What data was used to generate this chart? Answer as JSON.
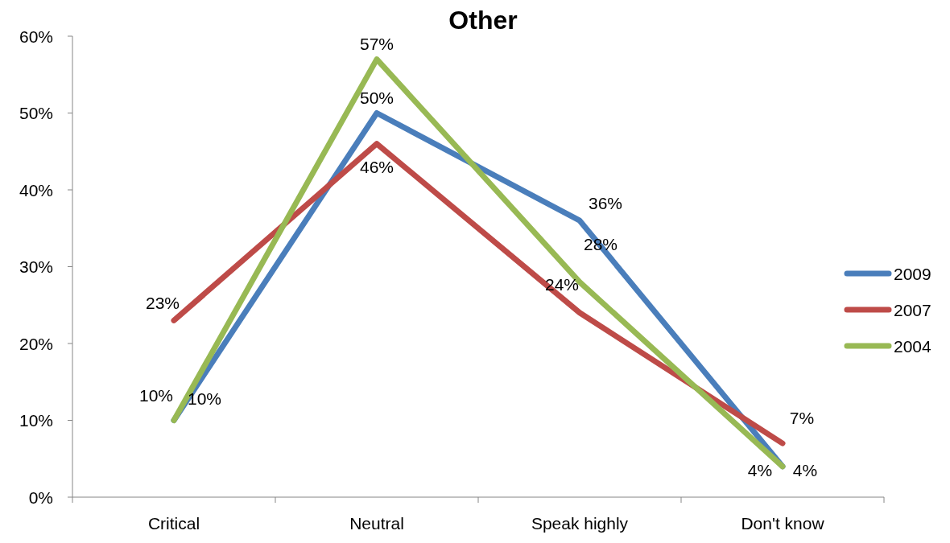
{
  "chart_data": {
    "type": "line",
    "title": "Other",
    "categories": [
      "Critical",
      "Neutral",
      "Speak highly",
      "Don't know"
    ],
    "series": [
      {
        "name": "2009",
        "color": "#4a7ebb",
        "values": [
          10,
          50,
          36,
          4
        ],
        "value_labels": [
          "10%",
          "50%",
          "36%",
          "4%"
        ]
      },
      {
        "name": "2007",
        "color": "#be4b48",
        "values": [
          23,
          46,
          24,
          7
        ],
        "value_labels": [
          "23%",
          "46%",
          "24%",
          "7%"
        ]
      },
      {
        "name": "2004",
        "color": "#98b954",
        "values": [
          10,
          57,
          28,
          4
        ],
        "value_labels": [
          "10%",
          "57%",
          "28%",
          "4%"
        ]
      }
    ],
    "ylim": [
      0,
      60
    ],
    "yticks": [
      {
        "value": 0,
        "label": "0%"
      },
      {
        "value": 10,
        "label": "10%"
      },
      {
        "value": 20,
        "label": "20%"
      },
      {
        "value": 30,
        "label": "30%"
      },
      {
        "value": 40,
        "label": "40%"
      },
      {
        "value": 50,
        "label": "50%"
      },
      {
        "value": 60,
        "label": "60%"
      }
    ],
    "grid": false,
    "legend": "right",
    "marker": "none",
    "line_style": "solid"
  }
}
